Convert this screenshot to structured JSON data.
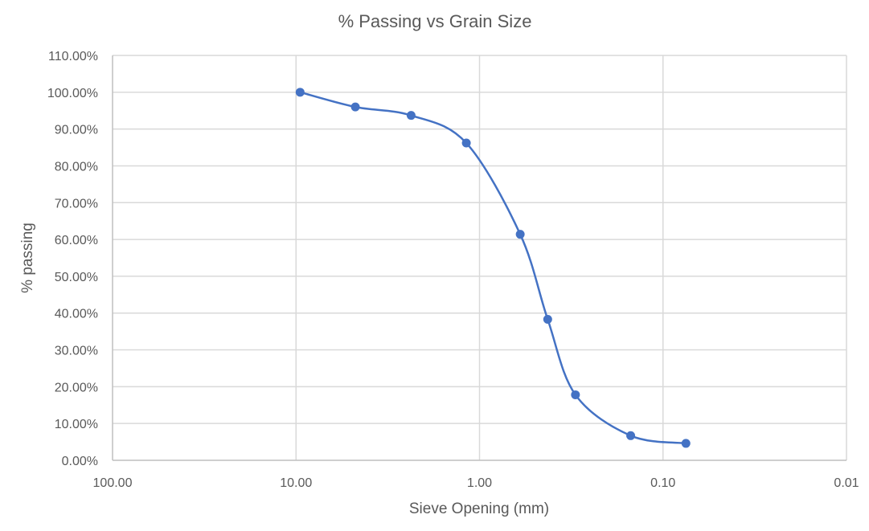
{
  "chart_data": {
    "type": "scatter",
    "title": "% Passing vs Grain Size",
    "xlabel": "Sieve Opening (mm)",
    "ylabel": "% passing",
    "x_scale": "log",
    "x_reversed": true,
    "xlim": [
      100,
      0.01
    ],
    "ylim": [
      0,
      1.1
    ],
    "y_step": 0.1,
    "x_ticks": [
      {
        "value": 100,
        "label": "100.00"
      },
      {
        "value": 10,
        "label": "10.00"
      },
      {
        "value": 1,
        "label": "1.00"
      },
      {
        "value": 0.1,
        "label": "0.10"
      },
      {
        "value": 0.01,
        "label": "0.01"
      }
    ],
    "y_ticks": [
      {
        "value": 0.0,
        "label": "0.00%"
      },
      {
        "value": 0.1,
        "label": "10.00%"
      },
      {
        "value": 0.2,
        "label": "20.00%"
      },
      {
        "value": 0.3,
        "label": "30.00%"
      },
      {
        "value": 0.4,
        "label": "40.00%"
      },
      {
        "value": 0.5,
        "label": "50.00%"
      },
      {
        "value": 0.6,
        "label": "60.00%"
      },
      {
        "value": 0.7,
        "label": "70.00%"
      },
      {
        "value": 0.8,
        "label": "80.00%"
      },
      {
        "value": 0.9,
        "label": "90.00%"
      },
      {
        "value": 1.0,
        "label": "100.00%"
      },
      {
        "value": 1.1,
        "label": "110.00%"
      }
    ],
    "grid": true,
    "smooth": true,
    "series": [
      {
        "name": "% passing",
        "color": "#4472c4",
        "x": [
          9.5,
          4.75,
          2.36,
          1.18,
          0.6,
          0.425,
          0.3,
          0.15,
          0.075
        ],
        "y": [
          1.0,
          0.96,
          0.937,
          0.862,
          0.614,
          0.383,
          0.178,
          0.067,
          0.046
        ]
      }
    ]
  }
}
